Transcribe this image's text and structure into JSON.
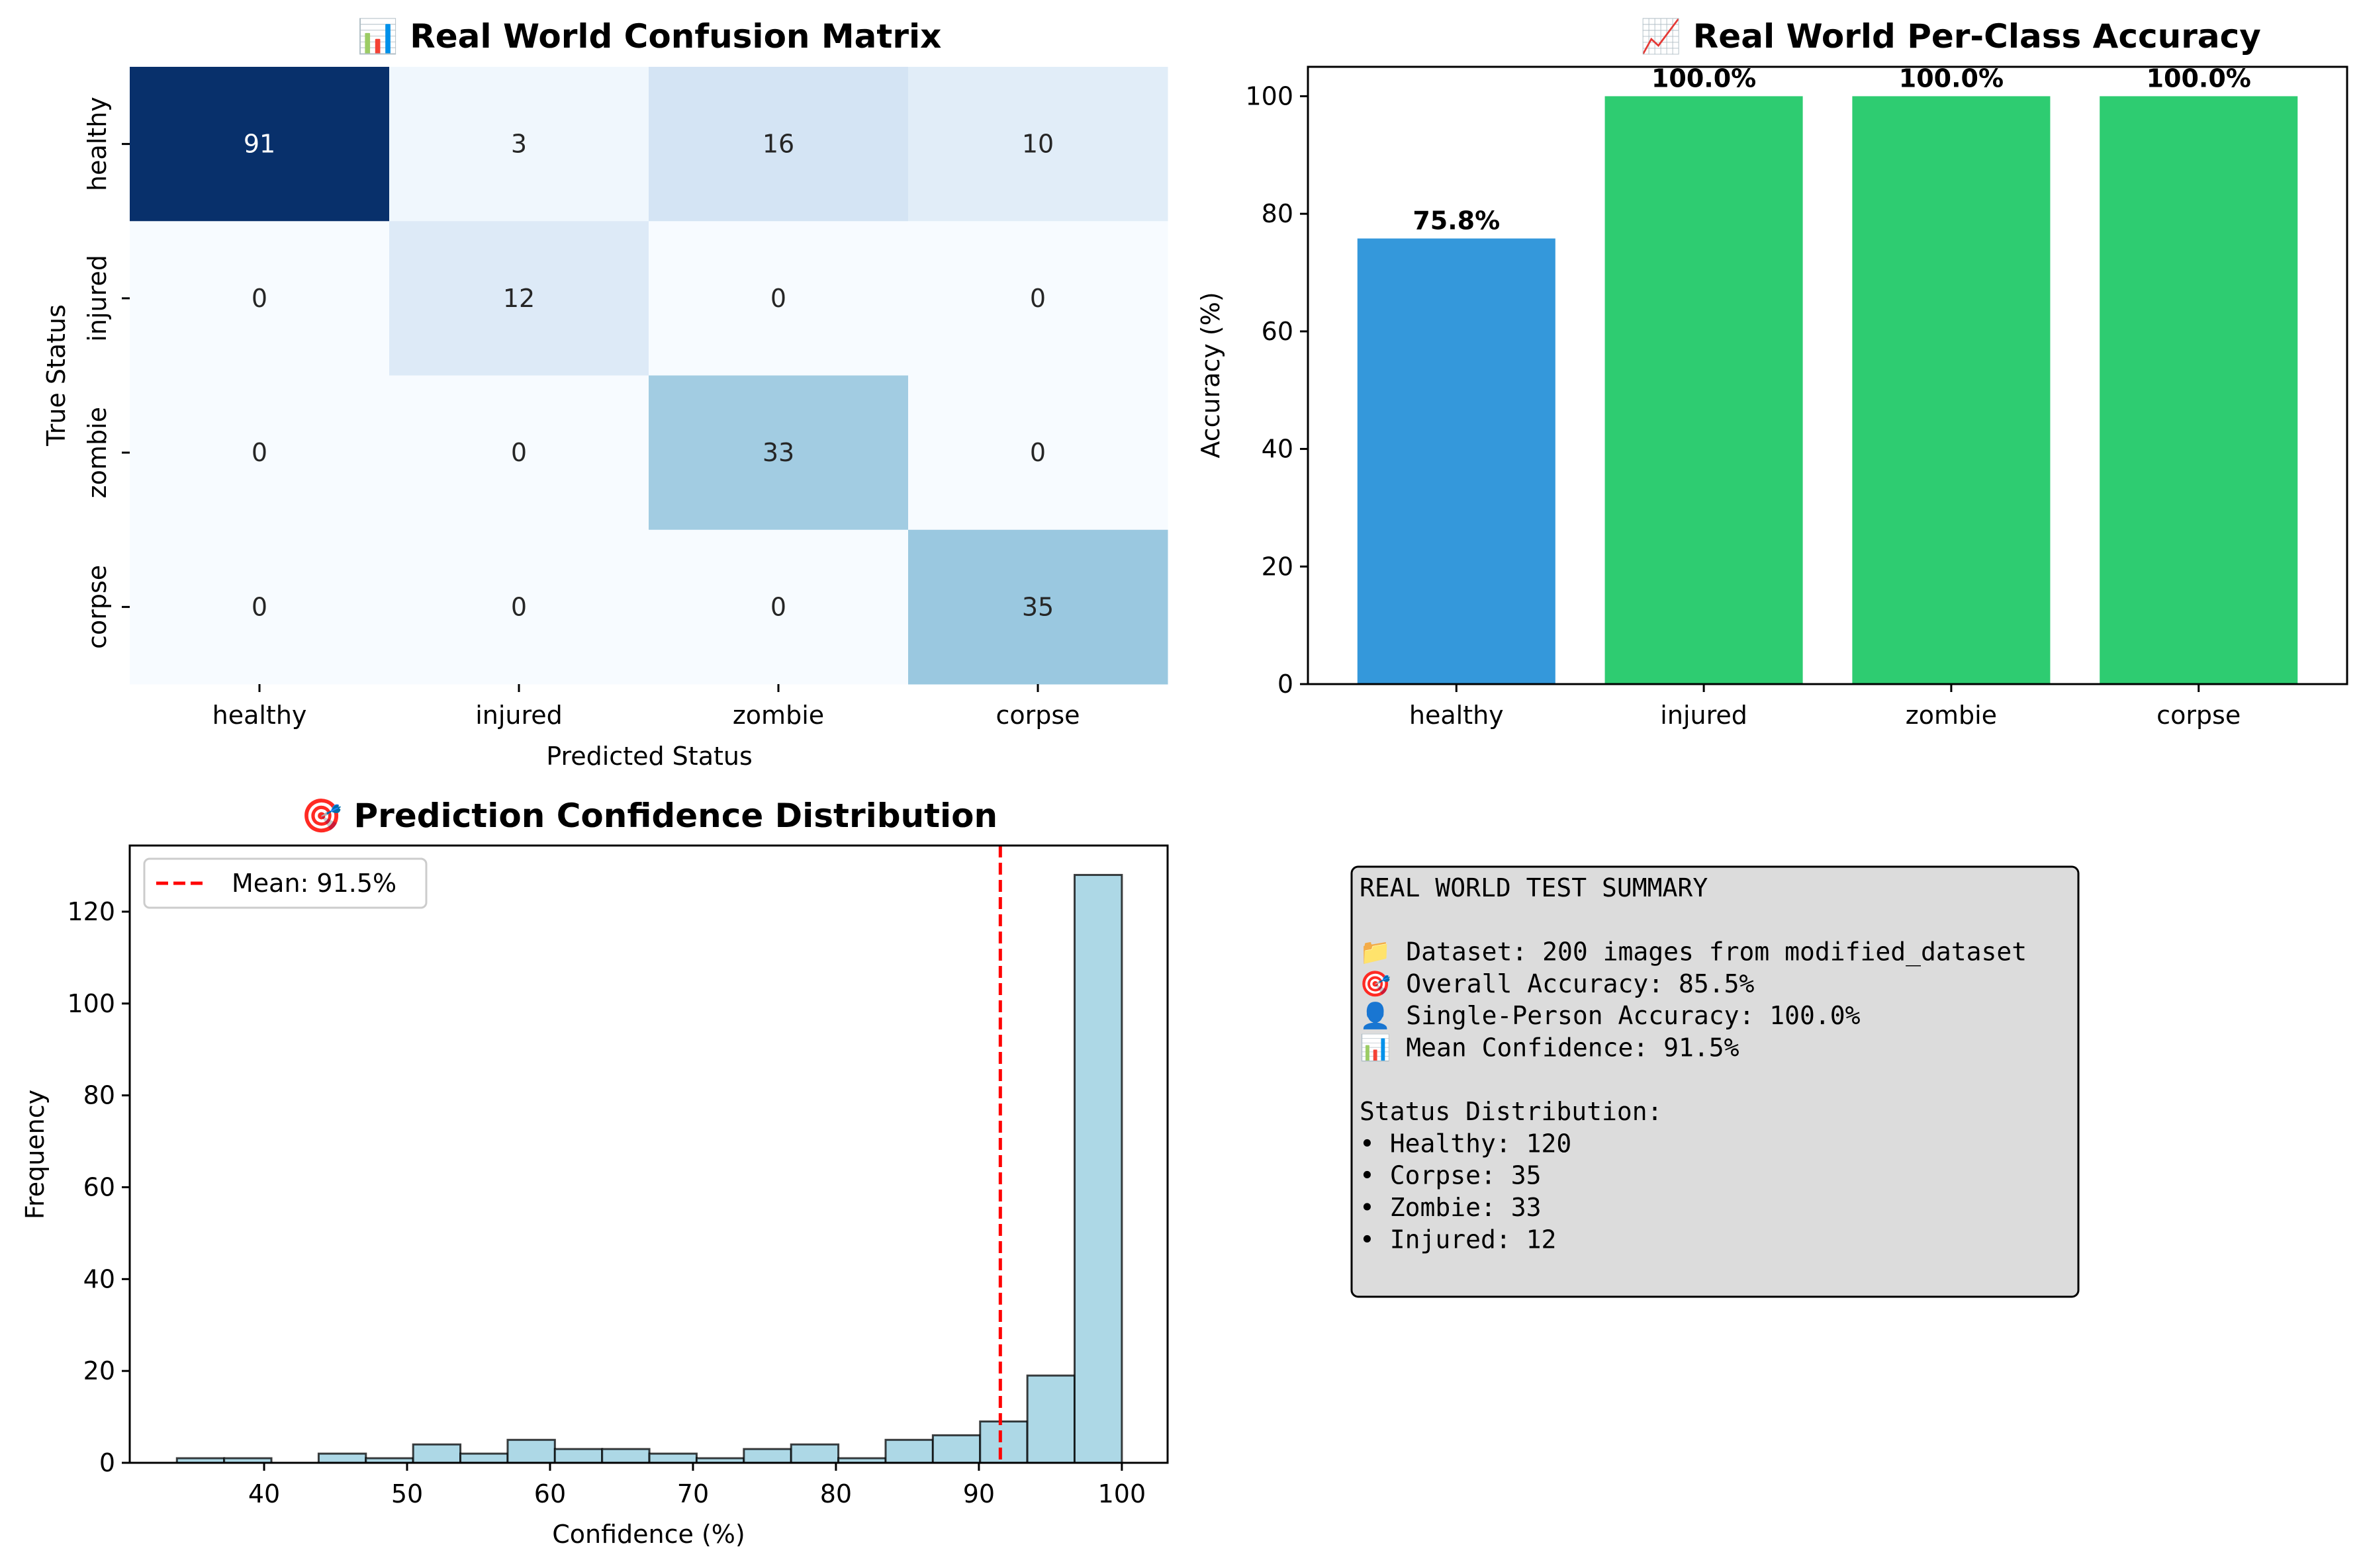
{
  "chart_data": [
    {
      "type": "heatmap",
      "title": "📊 Real World Confusion Matrix",
      "xlabel": "Predicted Status",
      "ylabel": "True Status",
      "x_categories": [
        "healthy",
        "injured",
        "zombie",
        "corpse"
      ],
      "y_categories": [
        "healthy",
        "injured",
        "zombie",
        "corpse"
      ],
      "values": [
        [
          91,
          3,
          16,
          10
        ],
        [
          0,
          12,
          0,
          0
        ],
        [
          0,
          0,
          33,
          0
        ],
        [
          0,
          0,
          0,
          35
        ]
      ],
      "colormap": "Blues"
    },
    {
      "type": "bar",
      "title": "📈 Real World Per-Class Accuracy",
      "xlabel": "",
      "ylabel": "Accuracy (%)",
      "categories": [
        "healthy",
        "injured",
        "zombie",
        "corpse"
      ],
      "values": [
        75.8,
        100.0,
        100.0,
        100.0
      ],
      "value_labels": [
        "75.8%",
        "100.0%",
        "100.0%",
        "100.0%"
      ],
      "colors": [
        "#3498db",
        "#2ecc71",
        "#2ecc71",
        "#2ecc71"
      ],
      "ylim": [
        0,
        105
      ],
      "yticks": [
        0,
        20,
        40,
        60,
        80,
        100
      ]
    },
    {
      "type": "bar",
      "subtype": "histogram",
      "title": "🎯 Prediction Confidence Distribution",
      "xlabel": "Confidence (%)",
      "ylabel": "Frequency",
      "bin_start": 33.9,
      "bin_width": 3.305,
      "counts": [
        1,
        1,
        0,
        2,
        1,
        4,
        2,
        5,
        3,
        3,
        2,
        1,
        3,
        4,
        1,
        5,
        6,
        9,
        19,
        128
      ],
      "xlim": [
        30.6,
        103.2
      ],
      "ylim": [
        0,
        134.4
      ],
      "xticks": [
        40,
        50,
        60,
        70,
        80,
        90,
        100
      ],
      "yticks": [
        0,
        20,
        40,
        60,
        80,
        100,
        120
      ],
      "mean_line": {
        "x": 91.5,
        "label": "Mean: 91.5%",
        "color": "#ff0000"
      },
      "bar_color": "#add8e6",
      "legend_position": "upper-left"
    }
  ],
  "summary": {
    "lines": [
      "REAL WORLD TEST SUMMARY",
      "",
      "📁 Dataset: 200 images from modified_dataset",
      "🎯 Overall Accuracy: 85.5%",
      "👤 Single-Person Accuracy: 100.0%",
      "📊 Mean Confidence: 91.5%",
      "",
      "Status Distribution:",
      "• Healthy: 120",
      "• Corpse: 35",
      "• Zombie: 33",
      "• Injured: 12"
    ]
  }
}
